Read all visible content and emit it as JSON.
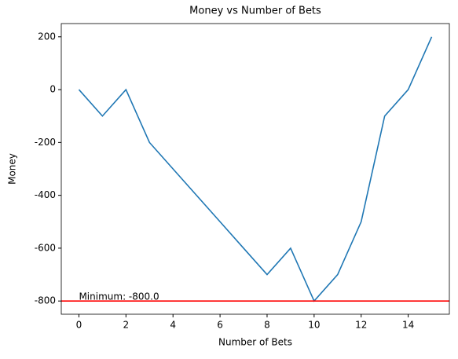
{
  "chart_data": {
    "type": "line",
    "title": "Money vs Number of Bets",
    "x_label": "Number of Bets",
    "y_label": "Money",
    "x": [
      0,
      1,
      2,
      3,
      4,
      5,
      6,
      7,
      8,
      9,
      10,
      11,
      12,
      13,
      14,
      15
    ],
    "series": [
      {
        "name": "Money",
        "color": "#1f77b4",
        "values": [
          0,
          -100,
          0,
          -200,
          -300,
          -400,
          -500,
          -600,
          -700,
          -600,
          -800,
          -700,
          -500,
          -100,
          0,
          200
        ]
      }
    ],
    "xlim": [
      -0.75,
      15.75
    ],
    "ylim": [
      -850,
      250
    ],
    "xticks": [
      0,
      2,
      4,
      6,
      8,
      10,
      12,
      14
    ],
    "yticks": [
      -800,
      -600,
      -400,
      -200,
      0,
      200
    ],
    "hline": {
      "value": -800,
      "color": "red"
    },
    "annotation": "Minimum: -800.0"
  }
}
